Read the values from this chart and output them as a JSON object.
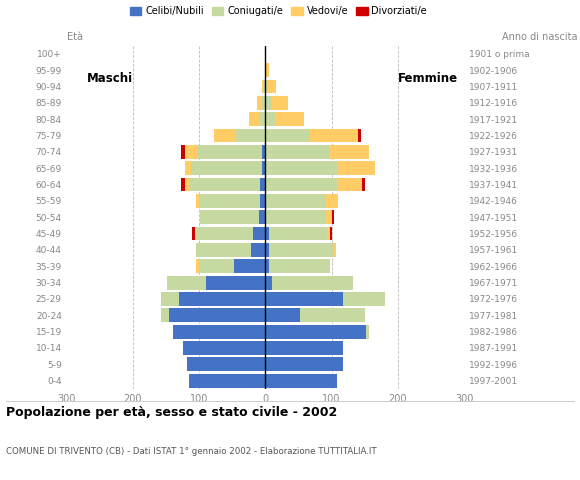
{
  "age_groups": [
    "0-4",
    "5-9",
    "10-14",
    "15-19",
    "20-24",
    "25-29",
    "30-34",
    "35-39",
    "40-44",
    "45-49",
    "50-54",
    "55-59",
    "60-64",
    "65-69",
    "70-74",
    "75-79",
    "80-84",
    "85-89",
    "90-94",
    "95-99",
    "100+"
  ],
  "birth_years": [
    "1997-2001",
    "1992-1996",
    "1987-1991",
    "1982-1986",
    "1977-1981",
    "1972-1976",
    "1967-1971",
    "1962-1966",
    "1957-1961",
    "1952-1956",
    "1947-1951",
    "1942-1946",
    "1937-1941",
    "1932-1936",
    "1927-1931",
    "1922-1926",
    "1917-1921",
    "1912-1916",
    "1907-1911",
    "1902-1906",
    "1901 o prima"
  ],
  "colors": {
    "celibe": "#4472C4",
    "coniugato": "#C5D9A0",
    "vedovo": "#FFCC66",
    "divorziato": "#CC0000"
  },
  "maschi_celibe": [
    115,
    118,
    125,
    140,
    145,
    130,
    90,
    48,
    22,
    18,
    10,
    8,
    8,
    5,
    5,
    0,
    0,
    0,
    0,
    0,
    0
  ],
  "maschi_coniugato": [
    0,
    0,
    0,
    0,
    12,
    28,
    58,
    52,
    82,
    88,
    88,
    92,
    108,
    108,
    98,
    45,
    10,
    5,
    2,
    0,
    0
  ],
  "maschi_vedovo": [
    0,
    0,
    0,
    0,
    0,
    0,
    0,
    4,
    0,
    0,
    0,
    5,
    5,
    8,
    18,
    32,
    15,
    8,
    3,
    0,
    0
  ],
  "maschi_divorziato": [
    0,
    0,
    0,
    0,
    0,
    0,
    0,
    0,
    0,
    5,
    0,
    0,
    7,
    0,
    7,
    0,
    0,
    0,
    0,
    0,
    0
  ],
  "femmine_celibe": [
    108,
    118,
    118,
    152,
    52,
    118,
    10,
    5,
    5,
    5,
    0,
    0,
    0,
    0,
    0,
    0,
    0,
    0,
    0,
    0,
    0
  ],
  "femmine_coniugato": [
    0,
    0,
    0,
    5,
    98,
    62,
    122,
    92,
    98,
    88,
    92,
    92,
    108,
    108,
    98,
    68,
    15,
    10,
    2,
    0,
    0
  ],
  "femmine_vedovo": [
    0,
    0,
    0,
    0,
    0,
    0,
    0,
    0,
    4,
    4,
    8,
    18,
    38,
    58,
    58,
    72,
    44,
    24,
    14,
    5,
    0
  ],
  "femmine_divorziato": [
    0,
    0,
    0,
    0,
    0,
    0,
    0,
    0,
    0,
    4,
    4,
    0,
    4,
    0,
    0,
    4,
    0,
    0,
    0,
    0,
    0
  ],
  "xlim": 300,
  "title": "Popolazione per età, sesso e stato civile - 2002",
  "subtitle": "COMUNE DI TRIVENTO (CB) - Dati ISTAT 1° gennaio 2002 - Elaborazione TUTTITALIA.IT",
  "xlabel_left": "Maschi",
  "xlabel_right": "Femmine",
  "ylabel_left": "Età",
  "ylabel_right": "Anno di nascita",
  "bg_color": "#FFFFFF",
  "grid_color": "#BBBBBB",
  "bar_height": 0.85,
  "legend_labels": [
    "Celibi/Nubili",
    "Coniugati/e",
    "Vedovi/e",
    "Divorziati/e"
  ]
}
